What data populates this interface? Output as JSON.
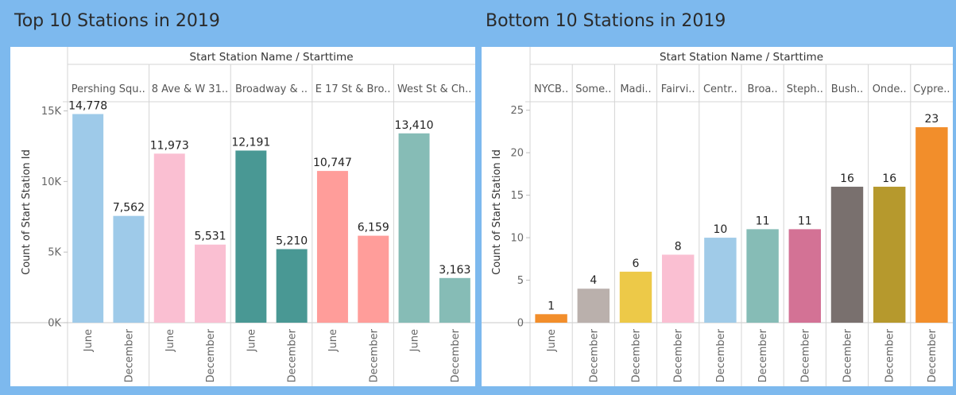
{
  "dashboard": {
    "left_title": "Top 10 Stations in 2019",
    "right_title": "Bottom 10 Stations in 2019"
  },
  "chart_data": [
    {
      "type": "bar",
      "title": "Top 10 Stations in 2019",
      "column_header": "Start Station Name  /  Starttime",
      "ylabel": "Count of Start Station Id",
      "ylim": [
        0,
        15650
      ],
      "yticks": [
        0,
        5000,
        10000,
        15000
      ],
      "ytick_labels": [
        "0K",
        "5K",
        "10K",
        "15K"
      ],
      "grid": false,
      "groups": [
        {
          "name": "Pershing Squ..",
          "color": "#9ecae9",
          "bars": [
            {
              "x": "June",
              "value": 14778
            },
            {
              "x": "December",
              "value": 7562
            }
          ]
        },
        {
          "name": "8 Ave & W 31..",
          "color": "#fabfd2",
          "bars": [
            {
              "x": "June",
              "value": 11973
            },
            {
              "x": "December",
              "value": 5531
            }
          ]
        },
        {
          "name": "Broadway & ..",
          "color": "#499894",
          "bars": [
            {
              "x": "June",
              "value": 12191
            },
            {
              "x": "December",
              "value": 5210
            }
          ]
        },
        {
          "name": "E 17 St & Bro..",
          "color": "#ff9d9a",
          "bars": [
            {
              "x": "June",
              "value": 10747
            },
            {
              "x": "December",
              "value": 6159
            }
          ]
        },
        {
          "name": "West St & Ch..",
          "color": "#86bcb6",
          "bars": [
            {
              "x": "June",
              "value": 13410
            },
            {
              "x": "December",
              "value": 3163
            }
          ]
        }
      ],
      "value_labels": [
        "14,778",
        "7,562",
        "11,973",
        "5,531",
        "12,191",
        "5,210",
        "10,747",
        "6,159",
        "13,410",
        "3,163"
      ]
    },
    {
      "type": "bar",
      "title": "Bottom 10 Stations in 2019",
      "column_header": "Start Station Name  /  Starttime",
      "ylabel": "Count of Start Station Id",
      "ylim": [
        0,
        26
      ],
      "yticks": [
        0,
        5,
        10,
        15,
        20,
        25
      ],
      "ytick_labels": [
        "0",
        "5",
        "10",
        "15",
        "20",
        "25"
      ],
      "grid": false,
      "groups": [
        {
          "name": "NYCB..",
          "color": "#f28e2b",
          "bars": [
            {
              "x": "June",
              "value": 1
            }
          ]
        },
        {
          "name": "Some..",
          "color": "#bab0ac",
          "bars": [
            {
              "x": "December",
              "value": 4
            }
          ]
        },
        {
          "name": "Madi..",
          "color": "#edc948",
          "bars": [
            {
              "x": "December",
              "value": 6
            }
          ]
        },
        {
          "name": "Fairvi..",
          "color": "#fabfd2",
          "bars": [
            {
              "x": "December",
              "value": 8
            }
          ]
        },
        {
          "name": "Centr..",
          "color": "#a0cbe8",
          "bars": [
            {
              "x": "December",
              "value": 10
            }
          ]
        },
        {
          "name": "Broa..",
          "color": "#86bcb6",
          "bars": [
            {
              "x": "December",
              "value": 11
            }
          ]
        },
        {
          "name": "Steph..",
          "color": "#d37295",
          "bars": [
            {
              "x": "December",
              "value": 11
            }
          ]
        },
        {
          "name": "Bush..",
          "color": "#79706e",
          "bars": [
            {
              "x": "December",
              "value": 16
            }
          ]
        },
        {
          "name": "Onde..",
          "color": "#b6992d",
          "bars": [
            {
              "x": "December",
              "value": 16
            }
          ]
        },
        {
          "name": "Cypre..",
          "color": "#f28e2b",
          "bars": [
            {
              "x": "December",
              "value": 23
            }
          ]
        }
      ],
      "value_labels": [
        "1",
        "4",
        "6",
        "8",
        "10",
        "11",
        "11",
        "16",
        "16",
        "23"
      ]
    }
  ]
}
